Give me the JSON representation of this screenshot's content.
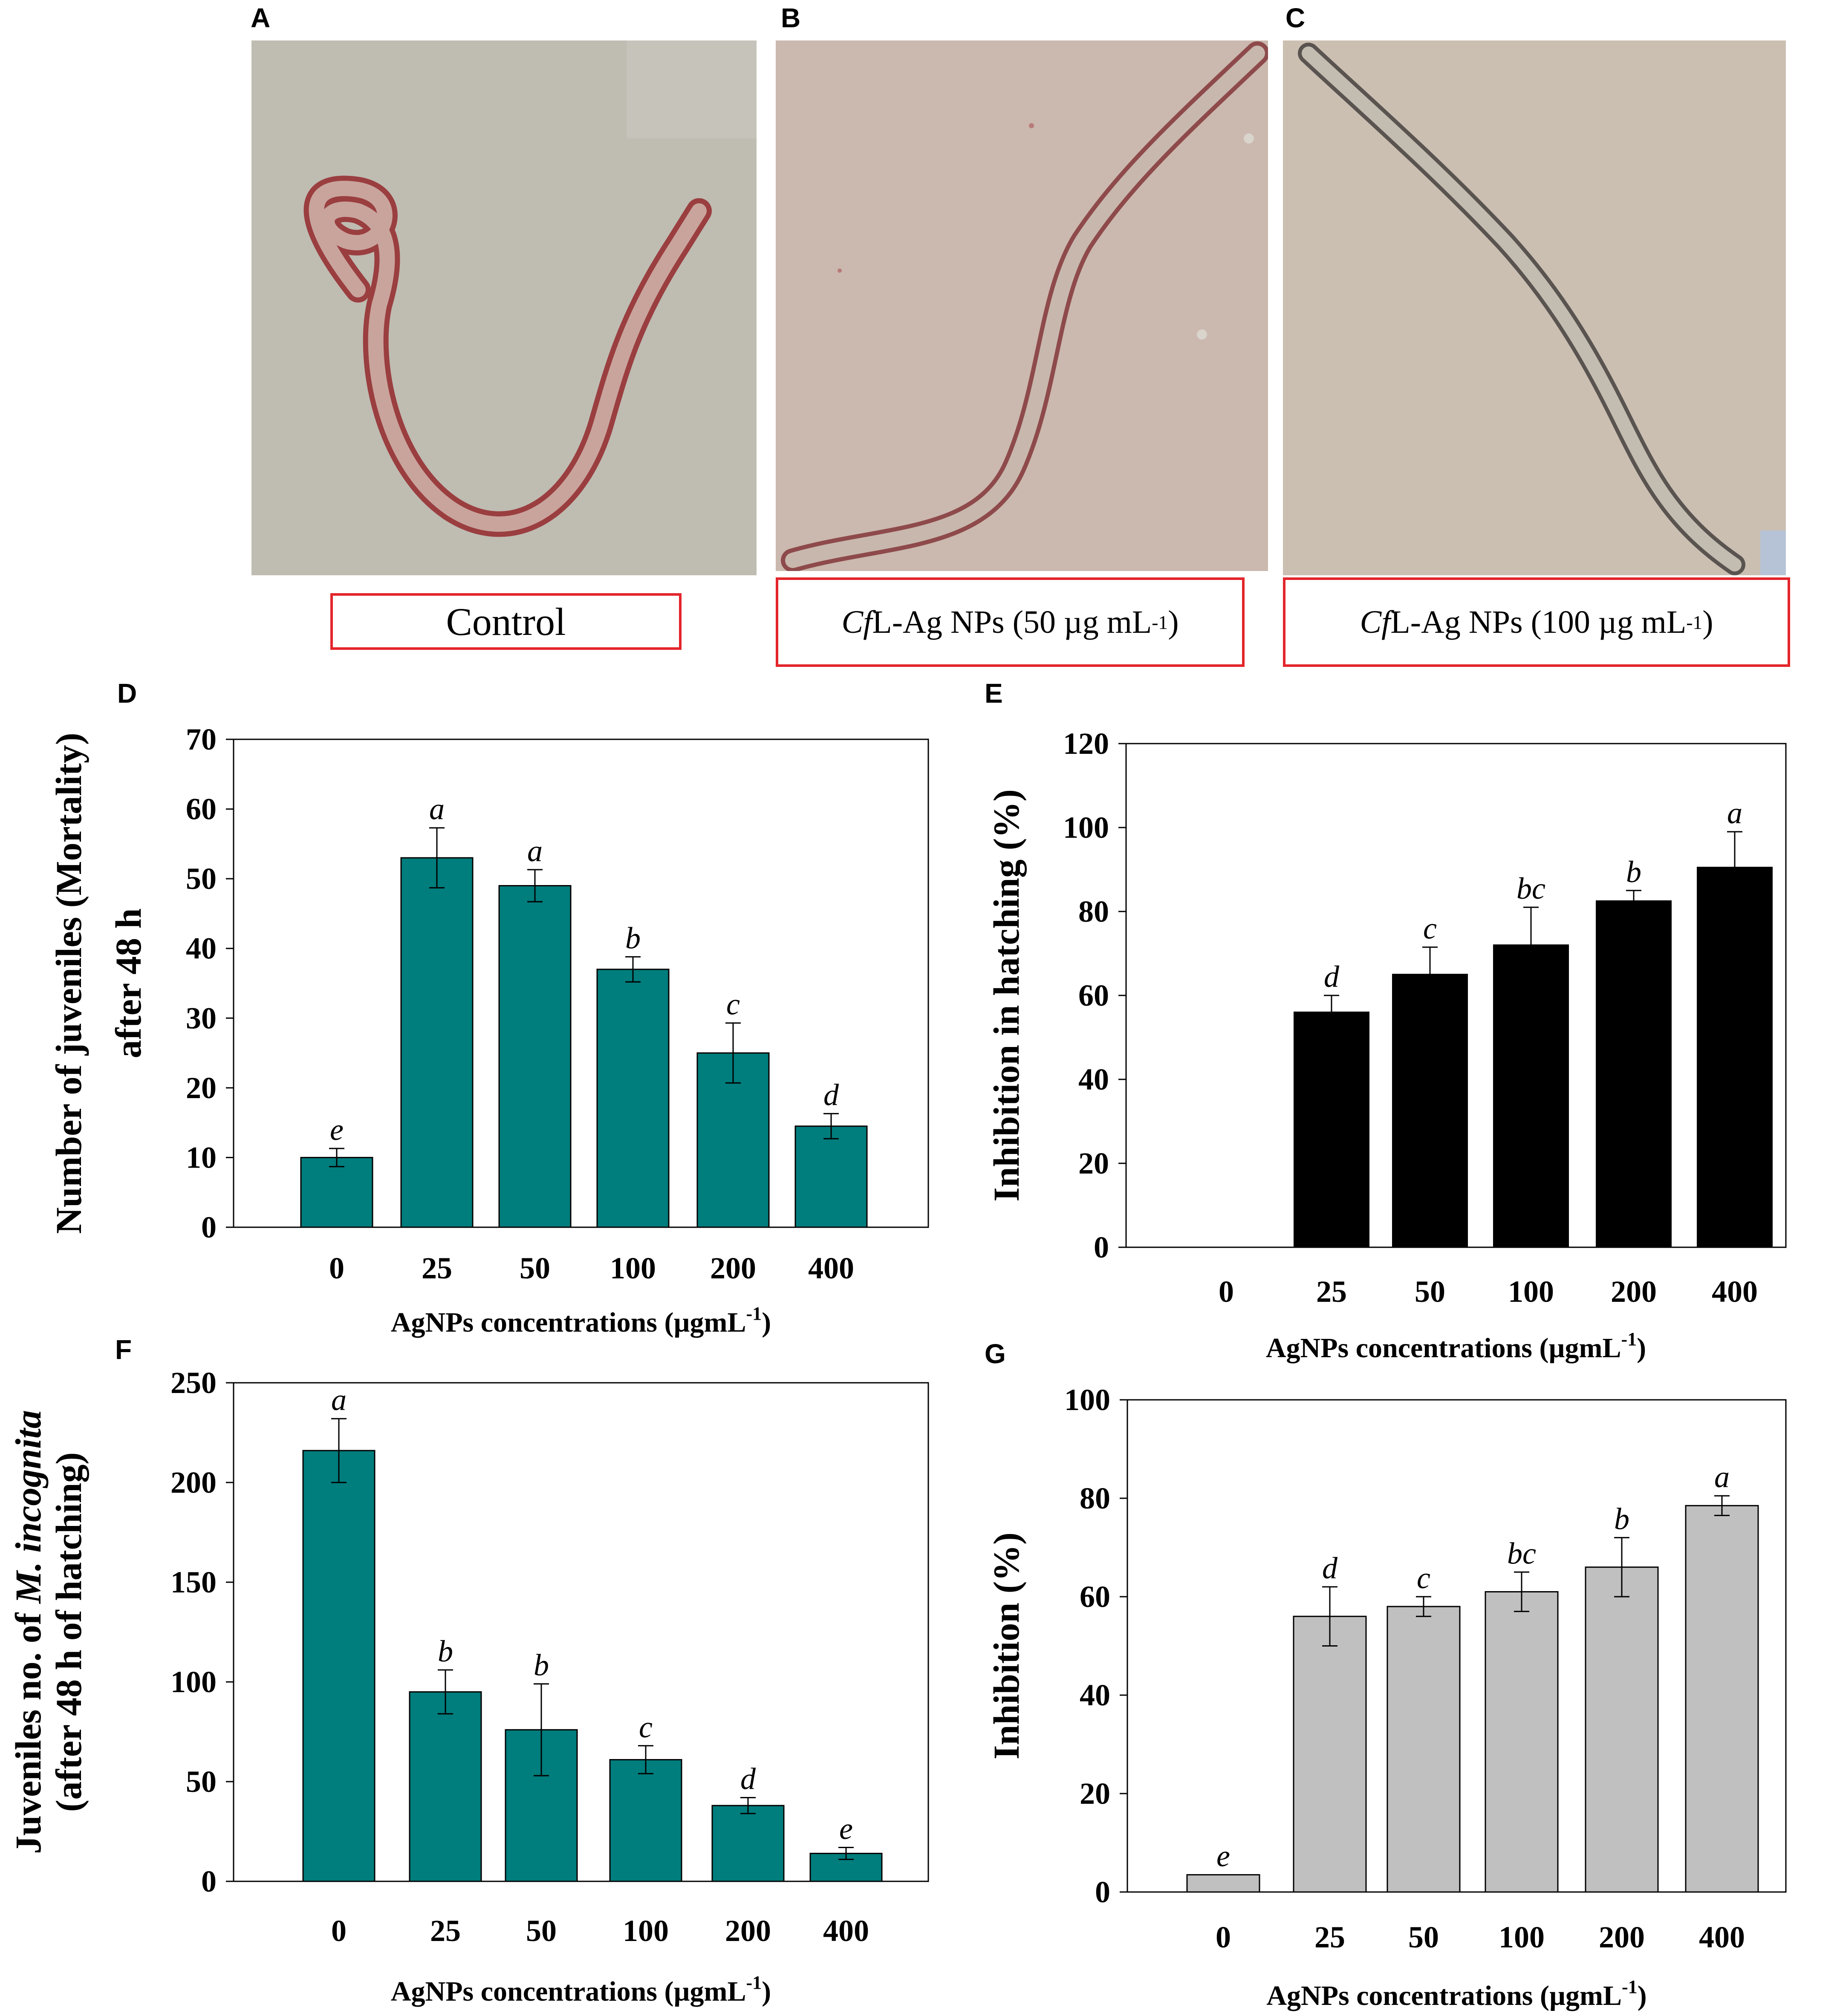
{
  "panels": {
    "A": {
      "letter": "A",
      "caption": "Control"
    },
    "B": {
      "letter": "B",
      "caption_italic": "Cf",
      "caption_main": "L-Ag NPs (50 µg mL",
      "caption_sup": "-1",
      "caption_end": " )"
    },
    "C": {
      "letter": "C",
      "caption_italic": "Cf",
      "caption_main": "L-Ag NPs (100 µg mL",
      "caption_sup": "-1",
      "caption_end": " )"
    }
  },
  "colors": {
    "teal": "#007d7d",
    "black": "#000000",
    "gray": "#c0c0c0",
    "caption_border": "#e3252b",
    "photo_bg": "#c4b8ab",
    "worm": "#a8494c"
  },
  "chart_data": [
    {
      "panel": "D",
      "type": "bar",
      "categories": [
        "0",
        "25",
        "50",
        "100",
        "200",
        "400"
      ],
      "values": [
        10,
        53,
        49,
        37,
        25,
        14.5
      ],
      "errors": [
        1.3,
        4.3,
        2.3,
        1.8,
        4.3,
        1.8
      ],
      "letters": [
        "e",
        "a",
        "a",
        "b",
        "c",
        "d"
      ],
      "ylim": [
        0,
        70
      ],
      "yticks": [
        0,
        10,
        20,
        30,
        40,
        50,
        60,
        70
      ],
      "ylabel_lines": [
        "Number of juveniles (Mortality)",
        "after 48 h"
      ],
      "xlabel": "AgNPs concentrations (µgmL",
      "xlabel_sup": "-1",
      "xlabel_end": ")",
      "color": "#007d7d"
    },
    {
      "panel": "E",
      "type": "bar",
      "categories": [
        "0",
        "25",
        "50",
        "100",
        "200",
        "400"
      ],
      "values": [
        0,
        56,
        65,
        72,
        82.5,
        90.5
      ],
      "errors": [
        0,
        4,
        6.5,
        9,
        2.5,
        8.5
      ],
      "letters": [
        "",
        "d",
        "c",
        "bc",
        "b",
        "a"
      ],
      "ylim": [
        0,
        120
      ],
      "yticks": [
        0,
        20,
        40,
        60,
        80,
        100,
        120
      ],
      "ylabel_lines": [
        "Inhibition in hatching (%)"
      ],
      "xlabel": "AgNPs concentrations (µgmL",
      "xlabel_sup": "-1",
      "xlabel_end": ")",
      "color": "#000000"
    },
    {
      "panel": "F",
      "type": "bar",
      "categories": [
        "0",
        "25",
        "50",
        "100",
        "200",
        "400"
      ],
      "values": [
        216,
        95,
        76,
        61,
        38,
        14
      ],
      "errors": [
        16,
        11,
        23,
        7,
        4,
        3
      ],
      "letters": [
        "a",
        "b",
        "b",
        "c",
        "d",
        "e"
      ],
      "ylim": [
        0,
        250
      ],
      "yticks": [
        0,
        50,
        100,
        150,
        200,
        250
      ],
      "ylabel_lines": [
        "Juveniles no. of M. incognita",
        "(after 48 h of hatching)"
      ],
      "xlabel": "AgNPs concentrations (µgmL",
      "xlabel_sup": "-1",
      "xlabel_end": ")",
      "color": "#007d7d"
    },
    {
      "panel": "G",
      "type": "bar",
      "categories": [
        "0",
        "25",
        "50",
        "100",
        "200",
        "400"
      ],
      "values": [
        3.5,
        56,
        58,
        61,
        66,
        78.5
      ],
      "errors": [
        0,
        6,
        2,
        4,
        6,
        2
      ],
      "letters": [
        "e",
        "d",
        "c",
        "bc",
        "b",
        "a"
      ],
      "ylim": [
        0,
        100
      ],
      "yticks": [
        0,
        20,
        40,
        60,
        80,
        100
      ],
      "ylabel_lines": [
        "Inhibition (%)"
      ],
      "xlabel": "AgNPs concentrations (µgmL",
      "xlabel_sup": "-1",
      "xlabel_end": ")",
      "color": "#c0c0c0"
    }
  ]
}
